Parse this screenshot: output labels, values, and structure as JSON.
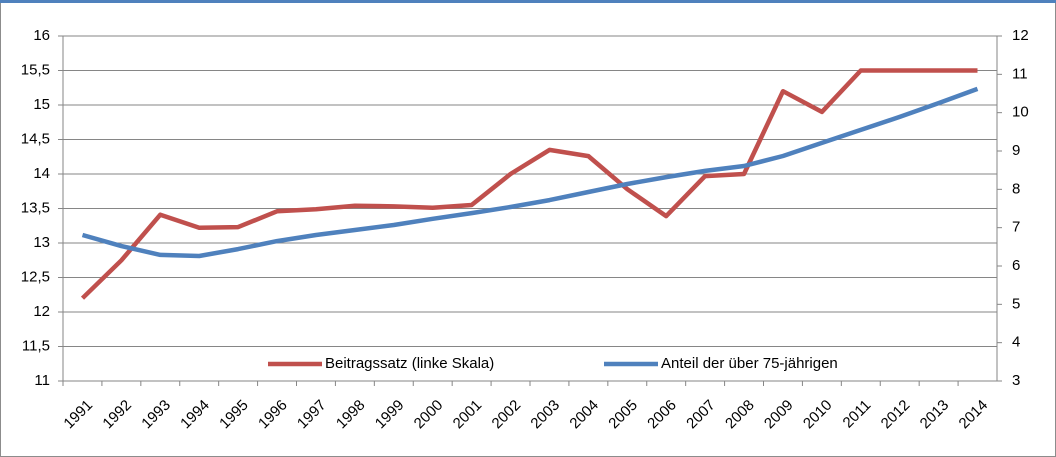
{
  "chart_data": {
    "type": "line",
    "categories": [
      "1991",
      "1992",
      "1993",
      "1994",
      "1995",
      "1996",
      "1997",
      "1998",
      "1999",
      "2000",
      "2001",
      "2002",
      "2003",
      "2004",
      "2005",
      "2006",
      "2007",
      "2008",
      "2009",
      "2010",
      "2011",
      "2012",
      "2013",
      "2014"
    ],
    "series": [
      {
        "name": "Beitragssatz (linke Skala)",
        "color": "#c0504d",
        "axis": "y",
        "values": [
          12.2,
          12.75,
          13.41,
          13.22,
          13.23,
          13.46,
          13.49,
          13.54,
          13.53,
          13.51,
          13.55,
          14.0,
          14.35,
          14.26,
          13.78,
          13.39,
          13.97,
          14.0,
          15.2,
          14.9,
          15.5,
          15.5,
          15.5,
          15.5
        ]
      },
      {
        "name": "Anteil der über 75-jährigen",
        "color": "#4f81bd",
        "axis": "y2",
        "values": [
          6.81,
          6.52,
          6.29,
          6.26,
          6.44,
          6.65,
          6.81,
          6.94,
          7.07,
          7.23,
          7.38,
          7.54,
          7.72,
          7.93,
          8.14,
          8.32,
          8.48,
          8.61,
          8.87,
          9.21,
          9.55,
          9.89,
          10.25,
          10.62
        ]
      }
    ],
    "ylim": [
      11,
      16
    ],
    "yticks": [
      11,
      {
        "value": 11.5,
        "label": "11,5"
      },
      12,
      {
        "value": 12.5,
        "label": "12,5"
      },
      13,
      {
        "value": 13.5,
        "label": "13,5"
      },
      14,
      {
        "value": 14.5,
        "label": "14,5"
      },
      15,
      {
        "value": 15.5,
        "label": "15,5"
      },
      16
    ],
    "y2lim": [
      3,
      12
    ],
    "y2ticks": [
      3,
      4,
      5,
      6,
      7,
      8,
      9,
      10,
      11,
      12
    ],
    "grid": true,
    "legend": "bottom"
  }
}
